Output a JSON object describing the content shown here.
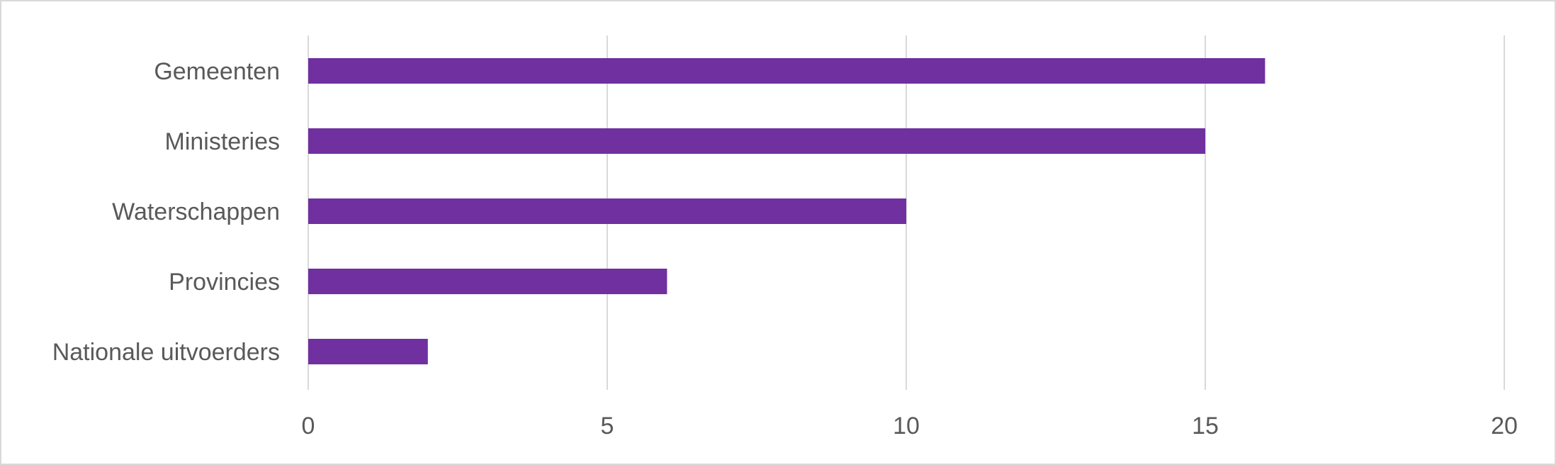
{
  "chart_data": {
    "type": "bar",
    "orientation": "horizontal",
    "title": "",
    "xlabel": "",
    "ylabel": "",
    "categories": [
      "Gemeenten",
      "Ministeries",
      "Waterschappen",
      "Provincies",
      "Nationale uitvoerders"
    ],
    "values": [
      16,
      15,
      10,
      6,
      2
    ],
    "xlim": [
      0,
      20
    ],
    "xticks": [
      "0",
      "5",
      "10",
      "15",
      "20"
    ],
    "grid": true,
    "legend": "none",
    "bar_color": "#7030a0",
    "grid_color": "#d9d9d9",
    "label_color": "#595959"
  }
}
